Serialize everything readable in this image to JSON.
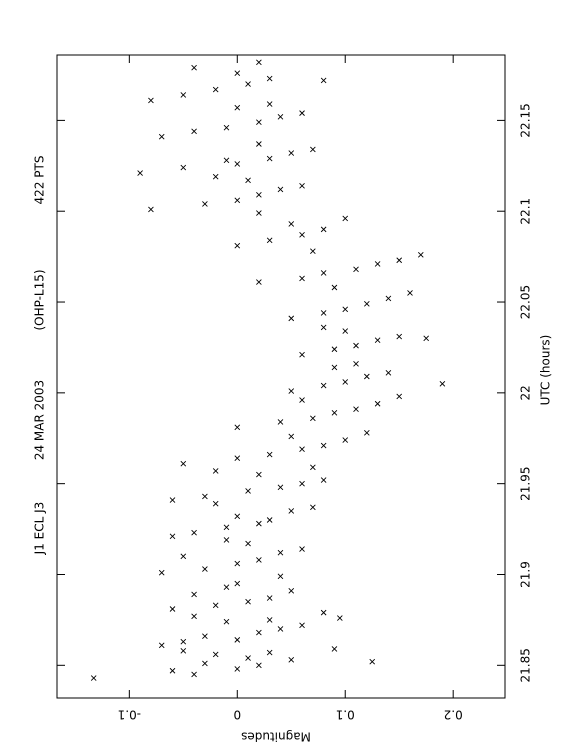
{
  "chart_data": {
    "type": "scatter",
    "title_parts": [
      "J1 ECL J3",
      "24 MAR 2003",
      "(OHP-L15)",
      "422 PTS"
    ],
    "x_label": "UTC (hours)",
    "y_label": "Magnitudes",
    "color": "#000000",
    "marker": "x",
    "xlim": [
      21.832,
      22.186
    ],
    "xticks": [
      21.85,
      21.9,
      21.95,
      22,
      22.05,
      22.1,
      22.15
    ],
    "ylim": [
      -0.167,
      0.248
    ],
    "yticks": [
      -0.1,
      0,
      0.1,
      0.2
    ],
    "x": [
      21.843,
      21.845,
      21.847,
      21.848,
      21.85,
      21.851,
      21.853,
      21.854,
      21.856,
      21.852,
      21.857,
      21.858,
      21.859,
      21.861,
      21.863,
      21.864,
      21.866,
      21.868,
      21.87,
      21.872,
      21.874,
      21.875,
      21.877,
      21.879,
      21.881,
      21.883,
      21.885,
      21.887,
      21.889,
      21.891,
      21.893,
      21.895,
      21.876,
      21.899,
      21.901,
      21.903,
      21.906,
      21.908,
      21.91,
      21.912,
      21.914,
      21.917,
      21.919,
      21.921,
      21.923,
      21.926,
      21.928,
      21.93,
      21.932,
      21.935,
      21.937,
      21.939,
      21.941,
      21.943,
      21.946,
      21.948,
      21.95,
      21.952,
      21.955,
      21.957,
      21.959,
      21.961,
      21.964,
      21.966,
      21.969,
      21.971,
      21.974,
      21.976,
      21.978,
      21.981,
      21.984,
      21.986,
      21.989,
      21.991,
      21.994,
      21.996,
      21.998,
      22.001,
      22.004,
      22.006,
      22.009,
      22.011,
      22.014,
      22.016,
      22.005,
      22.021,
      22.024,
      22.026,
      22.029,
      22.031,
      22.034,
      22.036,
      22.03,
      22.041,
      22.044,
      22.046,
      22.049,
      22.052,
      22.055,
      22.058,
      22.061,
      22.063,
      22.066,
      22.068,
      22.071,
      22.073,
      22.076,
      22.078,
      22.081,
      22.084,
      22.087,
      22.09,
      22.093,
      22.096,
      22.099,
      22.101,
      22.104,
      22.106,
      22.109,
      22.112,
      22.114,
      22.117,
      22.119,
      22.121,
      22.124,
      22.126,
      22.129,
      22.132,
      22.134,
      22.137,
      22.128,
      22.141,
      22.144,
      22.146,
      22.149,
      22.152,
      22.154,
      22.157,
      22.159,
      22.161,
      22.164,
      22.167,
      22.17,
      22.173,
      22.176,
      22.179,
      22.182,
      22.172
    ],
    "values": [
      -0.133,
      -0.04,
      -0.06,
      0.0,
      0.02,
      -0.03,
      0.05,
      0.01,
      -0.02,
      0.125,
      0.03,
      -0.05,
      0.09,
      -0.07,
      -0.05,
      0.0,
      -0.03,
      0.02,
      0.04,
      0.06,
      -0.01,
      0.03,
      -0.04,
      0.08,
      -0.06,
      -0.02,
      0.01,
      0.03,
      -0.04,
      0.05,
      -0.01,
      0.0,
      0.095,
      0.04,
      -0.07,
      -0.03,
      0.0,
      0.02,
      -0.05,
      0.04,
      0.06,
      0.01,
      -0.01,
      -0.06,
      -0.04,
      -0.01,
      0.02,
      0.03,
      0.0,
      0.05,
      0.07,
      -0.02,
      -0.06,
      -0.03,
      0.01,
      0.04,
      0.06,
      0.08,
      0.02,
      -0.02,
      0.07,
      -0.05,
      0.0,
      0.03,
      0.06,
      0.08,
      0.1,
      0.05,
      0.12,
      0.0,
      0.04,
      0.07,
      0.09,
      0.11,
      0.13,
      0.06,
      0.15,
      0.05,
      0.08,
      0.1,
      0.12,
      0.14,
      0.09,
      0.11,
      0.19,
      0.06,
      0.09,
      0.11,
      0.13,
      0.15,
      0.1,
      0.08,
      0.175,
      0.05,
      0.08,
      0.1,
      0.12,
      0.14,
      0.16,
      0.09,
      0.02,
      0.06,
      0.08,
      0.11,
      0.13,
      0.15,
      0.17,
      0.07,
      0.0,
      0.03,
      0.06,
      0.08,
      0.05,
      0.1,
      0.02,
      -0.08,
      -0.03,
      0.0,
      0.02,
      0.04,
      0.06,
      0.01,
      -0.02,
      -0.09,
      -0.05,
      0.0,
      0.03,
      0.05,
      0.07,
      0.02,
      -0.01,
      -0.07,
      -0.04,
      -0.01,
      0.02,
      0.04,
      0.06,
      0.0,
      0.03,
      -0.08,
      -0.05,
      -0.02,
      0.01,
      0.03,
      0.0,
      -0.04,
      0.02,
      0.08
    ]
  }
}
